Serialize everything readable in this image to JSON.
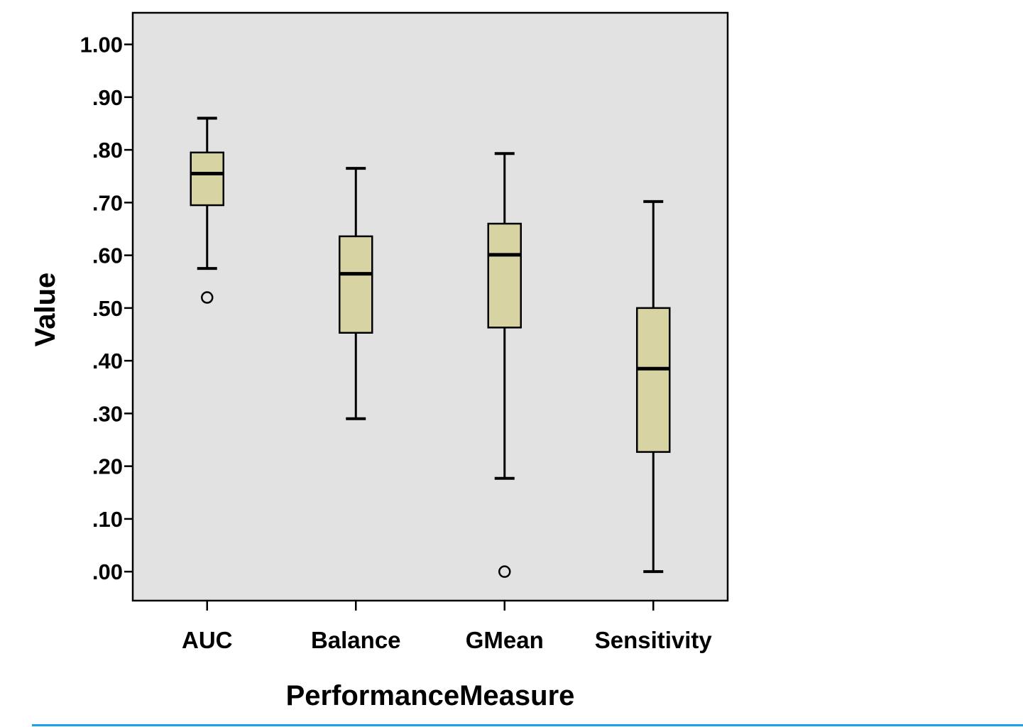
{
  "chart_data": {
    "type": "box",
    "xlabel": "PerformanceMeasure",
    "ylabel": "Value",
    "ylim": [
      -0.055,
      1.06
    ],
    "yticks": [
      1.0,
      0.9,
      0.8,
      0.7,
      0.6,
      0.5,
      0.4,
      0.3,
      0.2,
      0.1,
      0.0
    ],
    "ytick_labels": [
      "1.00",
      ".90",
      ".80",
      ".70",
      ".60",
      ".50",
      ".40",
      ".30",
      ".20",
      ".10",
      ".00"
    ],
    "categories": [
      "AUC",
      "Balance",
      "GMean",
      "Sensitivity"
    ],
    "boxes": [
      {
        "category": "AUC",
        "whisker_low": 0.575,
        "q1": 0.695,
        "median": 0.755,
        "q3": 0.795,
        "whisker_high": 0.86,
        "outliers": [
          0.52
        ]
      },
      {
        "category": "Balance",
        "whisker_low": 0.29,
        "q1": 0.453,
        "median": 0.565,
        "q3": 0.636,
        "whisker_high": 0.765,
        "outliers": []
      },
      {
        "category": "GMean",
        "whisker_low": 0.177,
        "q1": 0.463,
        "median": 0.601,
        "q3": 0.66,
        "whisker_high": 0.793,
        "outliers": [
          0.0
        ]
      },
      {
        "category": "Sensitivity",
        "whisker_low": 0.0,
        "q1": 0.227,
        "median": 0.385,
        "q3": 0.5,
        "whisker_high": 0.702,
        "outliers": []
      }
    ],
    "grid": false,
    "legend": "none"
  },
  "colors": {
    "plot_background": "#e2e2e2",
    "box_fill": "#d8d3a2",
    "stroke": "#000000",
    "bottom_rule": "#1aa3e6"
  }
}
